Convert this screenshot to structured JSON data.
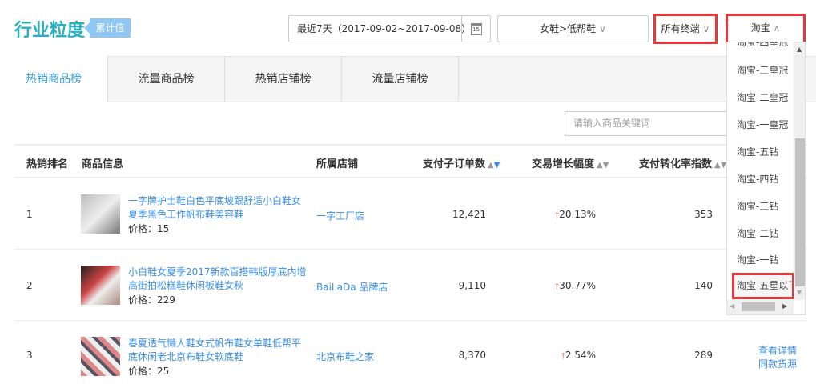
{
  "header": {
    "title": "行业粒度",
    "badge": "累计值",
    "date_range": "最近7天（2017-09-02~2017-09-08）",
    "calendar_day": "15",
    "category": "女鞋>低帮鞋",
    "terminal": "所有终端",
    "platform": "淘宝"
  },
  "tabs": [
    {
      "label": "热销商品榜",
      "active": true
    },
    {
      "label": "流量商品榜"
    },
    {
      "label": "热销店铺榜"
    },
    {
      "label": "流量店铺榜"
    }
  ],
  "search": {
    "placeholder": "请输入商品关键词"
  },
  "table": {
    "columns": [
      "热销排名",
      "商品信息",
      "所属店铺",
      "支付子订单数",
      "交易增长幅度",
      "支付转化率指数"
    ],
    "rows": [
      {
        "rank": "1",
        "name": "一字牌护士鞋白色平底坡跟舒适小白鞋女夏季黑色工作帆布鞋美容鞋",
        "price": "价格：15",
        "shop": "一字工厂店",
        "orders": "12,421",
        "growth": "20.13%",
        "conversion": "353"
      },
      {
        "rank": "2",
        "name": "小白鞋女夏季2017新款百搭韩版厚底内增高街拍松糕鞋休闲板鞋女秋",
        "price": "价格：229",
        "shop": "BaiLaDa 品牌店",
        "orders": "9,110",
        "growth": "30.77%",
        "conversion": "140"
      },
      {
        "rank": "3",
        "name": "春夏透气懒人鞋女式帆布鞋女单鞋低帮平底休闲老北京布鞋女软底鞋",
        "price": "价格：25",
        "shop": "北京布鞋之家",
        "orders": "8,370",
        "growth": "2.54%",
        "conversion": "289",
        "actions": [
          "查看详情",
          "同款货源"
        ]
      }
    ]
  },
  "dropdown": {
    "options": [
      "淘宝-四皇冠",
      "淘宝-三皇冠",
      "淘宝-二皇冠",
      "淘宝-一皇冠",
      "淘宝-五钻",
      "淘宝-四钻",
      "淘宝-三钻",
      "淘宝-二钻",
      "淘宝-一钻",
      "淘宝-五星以下"
    ],
    "highlighted": "淘宝-五星以下"
  },
  "colors": {
    "accent": "#3a8ee6",
    "title": "#2bb0c0",
    "badge": "#8fc8f5",
    "highlight": "#e8363a",
    "up": "#f04040"
  }
}
